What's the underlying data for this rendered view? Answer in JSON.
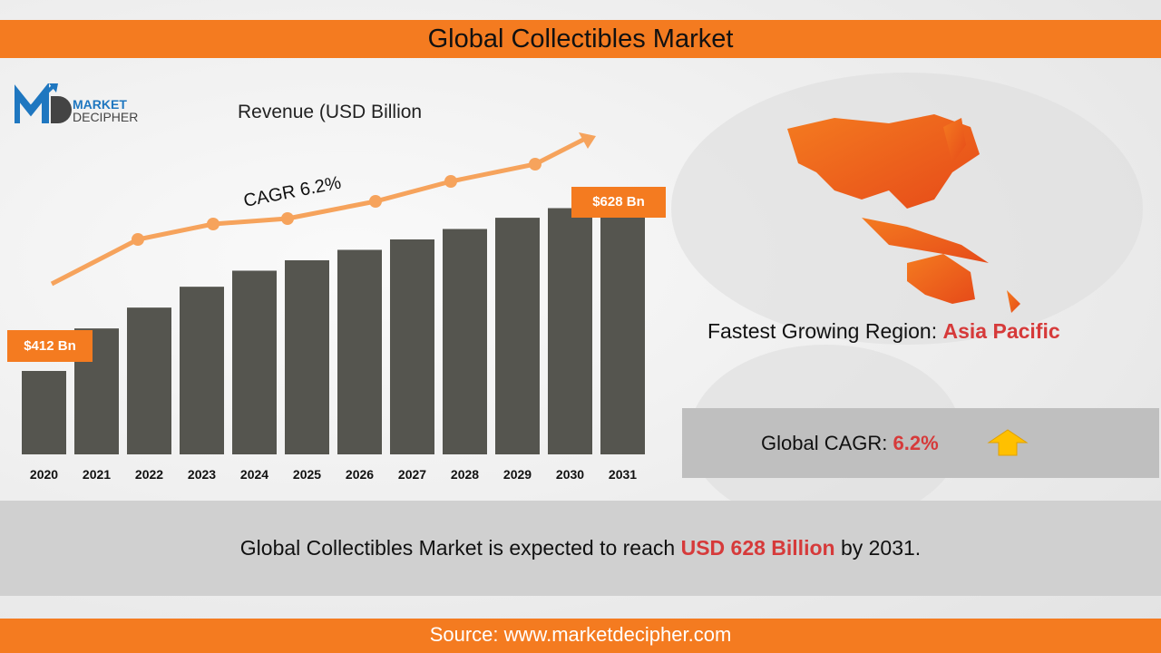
{
  "title": "Global Collectibles Market",
  "logo": {
    "line1": "MARKET",
    "line2": "DECIPHER"
  },
  "chart_data": {
    "type": "bar",
    "title": "Revenue (USD Billion",
    "categories": [
      "2020",
      "2021",
      "2022",
      "2023",
      "2024",
      "2025",
      "2026",
      "2027",
      "2028",
      "2029",
      "2030",
      "2031"
    ],
    "values": [
      412,
      465,
      491,
      517,
      537,
      550,
      563,
      576,
      589,
      603,
      615,
      628
    ],
    "bar_color": "#55554f",
    "data_labels": {
      "first": "$412 Bn",
      "last": "$628 Bn"
    },
    "trend_annotation": "CAGR 6.2%",
    "trend_color": "#f6a35c"
  },
  "region": {
    "label": "Fastest Growing Region:",
    "value": "Asia Pacific"
  },
  "cagr": {
    "label": "Global CAGR:",
    "value": "6.2%"
  },
  "summary": {
    "prefix": "Global Collectibles Market is expected to reach",
    "highlight": "USD 628 Billion",
    "suffix": "by 2031."
  },
  "source": "Source: www.marketdecipher.com",
  "colors": {
    "accent": "#f47b20",
    "highlight": "#d63a3a"
  }
}
